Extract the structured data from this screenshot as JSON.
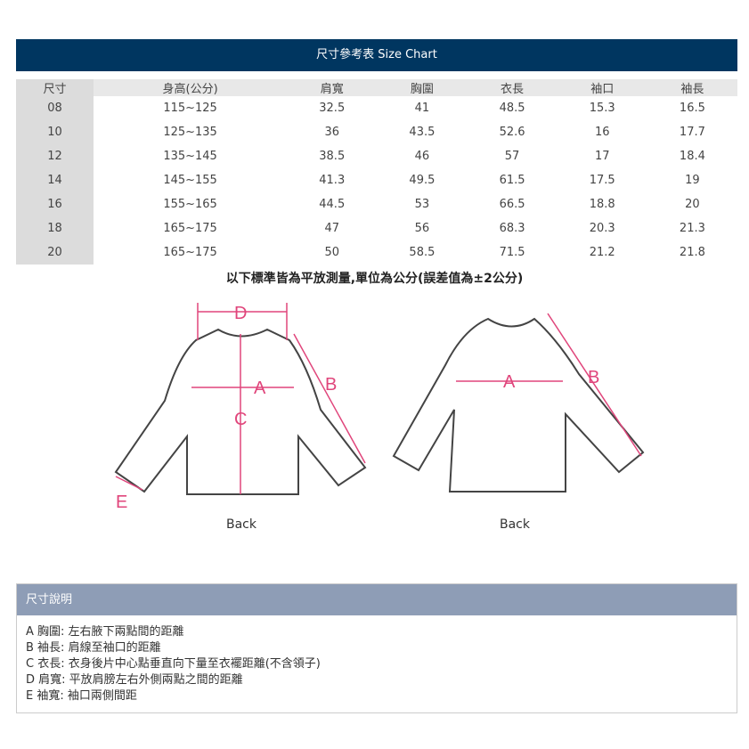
{
  "title": "尺寸參考表 Size Chart",
  "table": {
    "headers": [
      "尺寸",
      "身高(公分)",
      "肩寬",
      "胸圍",
      "衣長",
      "袖口",
      "袖長"
    ],
    "rows": [
      [
        "08",
        "115~125",
        "32.5",
        "41",
        "48.5",
        "15.3",
        "16.5"
      ],
      [
        "10",
        "125~135",
        "36",
        "43.5",
        "52.6",
        "16",
        "17.7"
      ],
      [
        "12",
        "135~145",
        "38.5",
        "46",
        "57",
        "17",
        "18.4"
      ],
      [
        "14",
        "145~155",
        "41.3",
        "49.5",
        "61.5",
        "17.5",
        "19"
      ],
      [
        "16",
        "155~165",
        "44.5",
        "53",
        "66.5",
        "18.8",
        "20"
      ],
      [
        "18",
        "165~175",
        "47",
        "56",
        "68.3",
        "20.3",
        "21.3"
      ],
      [
        "20",
        "165~175",
        "50",
        "58.5",
        "71.5",
        "21.2",
        "21.8"
      ]
    ]
  },
  "note": "以下標準皆為平放測量,單位為公分(誤差值為±2公分)",
  "diagram": {
    "left_label": "Back",
    "right_label": "Back",
    "marks": [
      "A",
      "B",
      "C",
      "D",
      "E"
    ],
    "accent": "#e0457b"
  },
  "explain": {
    "title": "尺寸說明",
    "items": [
      "A 胸圍: 左右腋下兩點間的距離",
      "B 袖長: 肩線至袖口的距離",
      "C 衣長: 衣身後片中心點垂直向下量至衣襬距離(不含領子)",
      "D 肩寬: 平放肩膀左右外側兩點之間的距離",
      "E 袖寬: 袖口兩側間距"
    ]
  }
}
